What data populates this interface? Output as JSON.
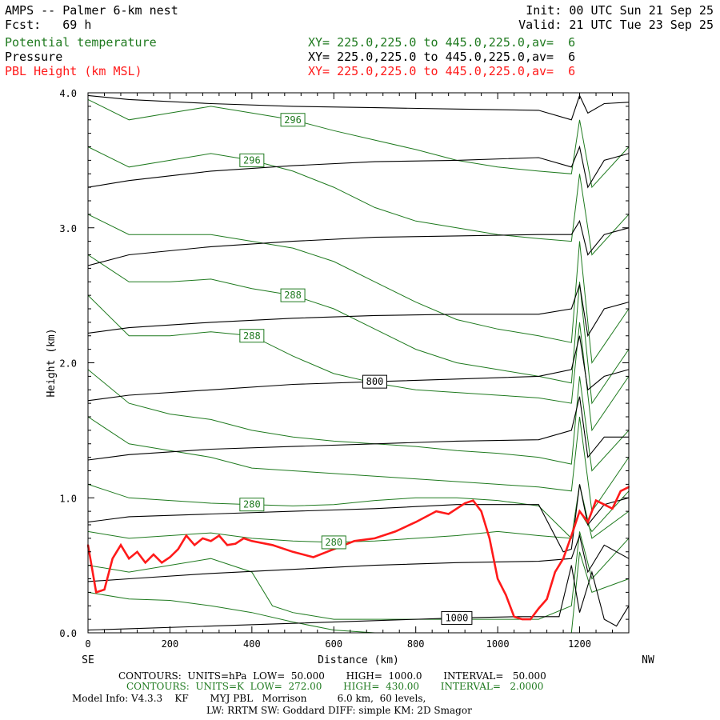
{
  "header": {
    "title": "AMPS -- Palmer 6-km nest",
    "fcst": "Fcst:   69 h",
    "init": "Init: 00 UTC Sun 21 Sep 25",
    "valid": "Valid: 21 UTC Tue 23 Sep 25",
    "fields": [
      {
        "name": "Potential temperature",
        "xy": "XY= 225.0,225.0 to 445.0,225.0,av=  6",
        "color": "#1f7a1f"
      },
      {
        "name": "Pressure",
        "xy": "XY= 225.0,225.0 to 445.0,225.0,av=  6",
        "color": "#000000"
      },
      {
        "name": "PBL Height (km MSL)",
        "xy": "XY= 225.0,225.0 to 445.0,225.0,av=  6",
        "color": "#ff1a1a"
      }
    ]
  },
  "chart_data": {
    "type": "line",
    "title": "AMPS -- Palmer 6-km nest",
    "xlabel": "Distance (km)",
    "ylabel": "Height (km)",
    "xlim": [
      0,
      1320
    ],
    "ylim": [
      0.0,
      4.0
    ],
    "x_ticks": [
      "0",
      "200",
      "400",
      "600",
      "800",
      "1000",
      "1200"
    ],
    "y_ticks": [
      "0.0",
      "1.0",
      "2.0",
      "3.0",
      "4.0"
    ],
    "x_end_left": "SE",
    "x_end_right": "NW",
    "pressure_contours": [
      {
        "label": "1000",
        "x": [
          0,
          100,
          300,
          500,
          700,
          900,
          1050,
          1150,
          1180,
          1200,
          1230,
          1260,
          1290,
          1320
        ],
        "y": [
          0.02,
          0.03,
          0.05,
          0.07,
          0.09,
          0.11,
          0.12,
          0.12,
          0.5,
          0.15,
          0.45,
          0.1,
          0.05,
          0.2
        ]
      },
      {
        "label": "",
        "x": [
          0,
          100,
          300,
          500,
          700,
          900,
          1100,
          1180,
          1200,
          1220,
          1260,
          1320
        ],
        "y": [
          0.38,
          0.4,
          0.44,
          0.47,
          0.5,
          0.52,
          0.53,
          0.55,
          0.72,
          0.45,
          0.65,
          0.55
        ]
      },
      {
        "label": "",
        "x": [
          0,
          100,
          300,
          500,
          700,
          900,
          1100,
          1160,
          1180,
          1200,
          1220,
          1260,
          1320
        ],
        "y": [
          0.82,
          0.86,
          0.88,
          0.9,
          0.92,
          0.95,
          0.95,
          0.6,
          0.62,
          1.1,
          0.8,
          0.95,
          1.0
        ]
      },
      {
        "label": "",
        "x": [
          0,
          100,
          300,
          500,
          700,
          900,
          1100,
          1180,
          1200,
          1220,
          1260,
          1320
        ],
        "y": [
          1.28,
          1.32,
          1.36,
          1.38,
          1.4,
          1.42,
          1.43,
          1.5,
          1.75,
          1.3,
          1.45,
          1.45
        ]
      },
      {
        "label": "800",
        "x": [
          0,
          100,
          300,
          500,
          700,
          900,
          1100,
          1180,
          1200,
          1220,
          1260,
          1320
        ],
        "y": [
          1.72,
          1.76,
          1.8,
          1.84,
          1.86,
          1.88,
          1.9,
          1.95,
          2.2,
          1.8,
          1.9,
          1.95
        ]
      },
      {
        "label": "",
        "x": [
          0,
          100,
          300,
          500,
          700,
          900,
          1100,
          1180,
          1200,
          1220,
          1260,
          1320
        ],
        "y": [
          2.22,
          2.26,
          2.3,
          2.33,
          2.35,
          2.36,
          2.36,
          2.4,
          2.58,
          2.2,
          2.4,
          2.45
        ]
      },
      {
        "label": "",
        "x": [
          0,
          100,
          300,
          500,
          700,
          900,
          1100,
          1180,
          1200,
          1220,
          1260,
          1320
        ],
        "y": [
          2.72,
          2.8,
          2.86,
          2.9,
          2.93,
          2.94,
          2.95,
          2.95,
          3.05,
          2.8,
          2.95,
          3.0
        ]
      },
      {
        "label": "",
        "x": [
          0,
          100,
          300,
          500,
          700,
          900,
          1100,
          1180,
          1200,
          1220,
          1260,
          1320
        ],
        "y": [
          3.3,
          3.35,
          3.42,
          3.46,
          3.49,
          3.5,
          3.52,
          3.45,
          3.6,
          3.3,
          3.5,
          3.55
        ]
      },
      {
        "label": "",
        "x": [
          0,
          100,
          300,
          500,
          700,
          900,
          1100,
          1180,
          1200,
          1220,
          1260,
          1320
        ],
        "y": [
          3.98,
          3.95,
          3.92,
          3.9,
          3.89,
          3.88,
          3.87,
          3.8,
          3.98,
          3.85,
          3.92,
          3.93
        ]
      }
    ],
    "theta_contours": [
      {
        "label": "",
        "x": [
          0,
          100,
          200,
          300,
          400,
          500,
          600,
          700,
          800,
          900,
          1000,
          1100,
          1180,
          1200,
          1230,
          1320
        ],
        "y": [
          0.3,
          0.25,
          0.24,
          0.2,
          0.15,
          0.08,
          0.02,
          0.0,
          0.0,
          0.0,
          0.0,
          0.0,
          0.0,
          0.6,
          0.3,
          0.4
        ]
      },
      {
        "label": "",
        "x": [
          0,
          100,
          200,
          300,
          400,
          450,
          500,
          600,
          700,
          800,
          900,
          1000,
          1100,
          1180,
          1200,
          1230,
          1320
        ],
        "y": [
          0.5,
          0.45,
          0.5,
          0.55,
          0.45,
          0.2,
          0.15,
          0.1,
          0.1,
          0.1,
          0.1,
          0.1,
          0.1,
          0.2,
          0.75,
          0.4,
          0.7
        ]
      },
      {
        "label": "280",
        "x": [
          0,
          100,
          200,
          300,
          400,
          500,
          600,
          700,
          800,
          900,
          1000,
          1100,
          1180,
          1200,
          1230,
          1320
        ],
        "y": [
          0.75,
          0.7,
          0.72,
          0.74,
          0.7,
          0.68,
          0.67,
          0.68,
          0.7,
          0.72,
          0.75,
          0.72,
          0.7,
          1.1,
          0.7,
          0.9
        ]
      },
      {
        "label": "280",
        "x": [
          0,
          100,
          200,
          300,
          400,
          500,
          600,
          700,
          800,
          900,
          1000,
          1100,
          1180,
          1200,
          1230,
          1320
        ],
        "y": [
          1.1,
          1.0,
          0.98,
          0.96,
          0.95,
          0.94,
          0.95,
          0.98,
          1.0,
          1.0,
          0.98,
          0.94,
          0.7,
          0.9,
          0.75,
          1.05
        ]
      },
      {
        "label": "",
        "x": [
          0,
          100,
          200,
          300,
          400,
          500,
          600,
          700,
          800,
          900,
          1000,
          1100,
          1180,
          1200,
          1230,
          1320
        ],
        "y": [
          1.6,
          1.4,
          1.35,
          1.3,
          1.22,
          1.2,
          1.18,
          1.16,
          1.14,
          1.12,
          1.1,
          1.08,
          1.05,
          1.6,
          0.9,
          1.3
        ]
      },
      {
        "label": "",
        "x": [
          0,
          100,
          200,
          300,
          400,
          500,
          600,
          700,
          800,
          900,
          1000,
          1100,
          1180,
          1200,
          1230,
          1320
        ],
        "y": [
          1.95,
          1.7,
          1.62,
          1.58,
          1.5,
          1.45,
          1.42,
          1.4,
          1.38,
          1.35,
          1.33,
          1.3,
          1.25,
          1.9,
          1.2,
          1.5
        ]
      },
      {
        "label": "288",
        "x": [
          0,
          100,
          200,
          300,
          400,
          500,
          600,
          700,
          800,
          900,
          1000,
          1100,
          1180,
          1200,
          1230,
          1320
        ],
        "y": [
          2.5,
          2.2,
          2.2,
          2.23,
          2.2,
          2.05,
          1.92,
          1.85,
          1.8,
          1.78,
          1.76,
          1.74,
          1.7,
          2.3,
          1.5,
          1.9
        ]
      },
      {
        "label": "288",
        "x": [
          0,
          100,
          200,
          300,
          400,
          500,
          600,
          700,
          800,
          900,
          1000,
          1100,
          1180,
          1200,
          1230,
          1320
        ],
        "y": [
          2.8,
          2.6,
          2.6,
          2.62,
          2.55,
          2.5,
          2.4,
          2.25,
          2.1,
          2.0,
          1.95,
          1.9,
          1.85,
          2.6,
          1.7,
          2.1
        ]
      },
      {
        "label": "",
        "x": [
          0,
          100,
          200,
          300,
          400,
          500,
          600,
          700,
          800,
          900,
          1000,
          1100,
          1180,
          1200,
          1230,
          1320
        ],
        "y": [
          3.1,
          2.95,
          2.95,
          2.95,
          2.9,
          2.85,
          2.75,
          2.6,
          2.45,
          2.32,
          2.25,
          2.2,
          2.15,
          2.9,
          2.0,
          2.4
        ]
      },
      {
        "label": "296",
        "x": [
          0,
          100,
          200,
          300,
          400,
          500,
          600,
          700,
          800,
          900,
          1000,
          1100,
          1180,
          1200,
          1230,
          1320
        ],
        "y": [
          3.6,
          3.45,
          3.5,
          3.55,
          3.5,
          3.42,
          3.3,
          3.15,
          3.05,
          3.0,
          2.95,
          2.92,
          2.9,
          3.4,
          2.8,
          3.1
        ]
      },
      {
        "label": "296",
        "x": [
          0,
          100,
          200,
          300,
          400,
          500,
          600,
          700,
          800,
          900,
          1000,
          1100,
          1180,
          1200,
          1230,
          1320
        ],
        "y": [
          3.95,
          3.8,
          3.85,
          3.9,
          3.85,
          3.8,
          3.72,
          3.65,
          3.58,
          3.5,
          3.45,
          3.42,
          3.4,
          3.8,
          3.3,
          3.6
        ]
      }
    ],
    "pbl_height": {
      "x": [
        0,
        20,
        40,
        60,
        80,
        100,
        120,
        140,
        160,
        180,
        200,
        220,
        240,
        260,
        280,
        300,
        320,
        340,
        360,
        380,
        400,
        450,
        500,
        550,
        600,
        650,
        700,
        750,
        800,
        850,
        880,
        900,
        920,
        940,
        960,
        980,
        1000,
        1020,
        1040,
        1060,
        1080,
        1100,
        1120,
        1140,
        1160,
        1180,
        1200,
        1220,
        1240,
        1260,
        1280,
        1300,
        1320
      ],
      "y": [
        0.65,
        0.3,
        0.32,
        0.55,
        0.65,
        0.55,
        0.6,
        0.52,
        0.58,
        0.52,
        0.56,
        0.62,
        0.72,
        0.65,
        0.7,
        0.68,
        0.72,
        0.65,
        0.66,
        0.7,
        0.68,
        0.65,
        0.6,
        0.56,
        0.62,
        0.68,
        0.7,
        0.75,
        0.82,
        0.9,
        0.88,
        0.92,
        0.96,
        0.98,
        0.9,
        0.7,
        0.4,
        0.28,
        0.12,
        0.1,
        0.1,
        0.18,
        0.25,
        0.45,
        0.55,
        0.72,
        0.9,
        0.82,
        0.98,
        0.95,
        0.92,
        1.05,
        1.08
      ]
    },
    "footer": {
      "line1": "CONTOURS:  UNITS=hPa  LOW=  50.000       HIGH=  1000.0       INTERVAL=   50.000",
      "line2": "CONTOURS:  UNITS=K  LOW=  272.00       HIGH=  430.00       INTERVAL=   2.0000",
      "line3": "Model Info: V4.3.3    KF       MYJ PBL   Morrison          6.0 km,  60 levels,",
      "line4": "LW: RRTM SW: Goddard DIFF: simple KM: 2D Smagor"
    }
  }
}
